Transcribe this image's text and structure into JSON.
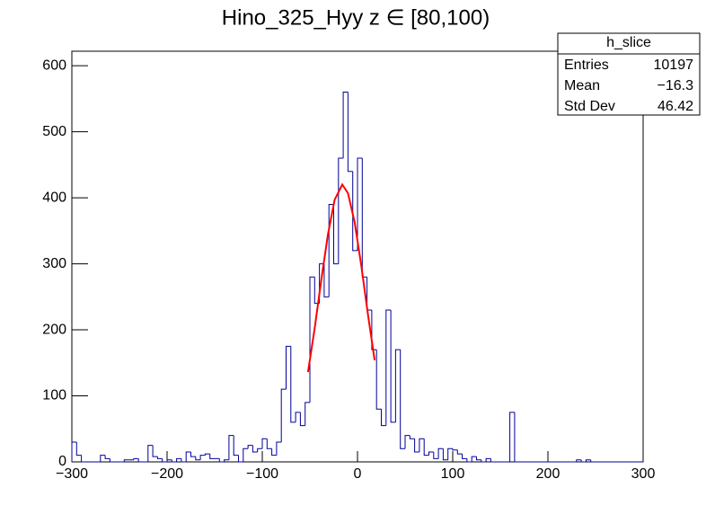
{
  "chart_data": {
    "type": "histogram",
    "title": "Hino_325_Hyy z  ∈ [80,100)",
    "bins": [
      -300,
      -295,
      -290,
      -285,
      -280,
      -275,
      -270,
      -265,
      -260,
      -255,
      -250,
      -245,
      -240,
      -235,
      -230,
      -225,
      -220,
      -215,
      -210,
      -205,
      -200,
      -195,
      -190,
      -185,
      -180,
      -175,
      -170,
      -165,
      -160,
      -155,
      -150,
      -145,
      -140,
      -135,
      -130,
      -125,
      -120,
      -115,
      -110,
      -105,
      -100,
      -95,
      -90,
      -85,
      -80,
      -75,
      -70,
      -65,
      -60,
      -55,
      -50,
      -45,
      -40,
      -35,
      -30,
      -25,
      -20,
      -15,
      -10,
      -5,
      0,
      5,
      10,
      15,
      20,
      25,
      30,
      35,
      40,
      45,
      50,
      55,
      60,
      65,
      70,
      75,
      80,
      85,
      90,
      95,
      100,
      105,
      110,
      115,
      120,
      125,
      130,
      135,
      140,
      145,
      150,
      155,
      160,
      165,
      170,
      175,
      180,
      185,
      190,
      195,
      200,
      205,
      210,
      215,
      220,
      225,
      230,
      235,
      240,
      245,
      250,
      255,
      260,
      265,
      270,
      275,
      280,
      285,
      290,
      295,
      300
    ],
    "values": [
      30,
      10,
      0,
      0,
      0,
      0,
      10,
      5,
      0,
      0,
      0,
      3,
      3,
      5,
      0,
      0,
      25,
      8,
      5,
      0,
      3,
      0,
      5,
      0,
      15,
      8,
      3,
      10,
      12,
      5,
      5,
      0,
      3,
      40,
      10,
      0,
      20,
      25,
      15,
      20,
      35,
      20,
      10,
      30,
      110,
      175,
      60,
      75,
      55,
      90,
      280,
      240,
      300,
      250,
      390,
      300,
      460,
      560,
      440,
      320,
      460,
      280,
      230,
      170,
      80,
      55,
      230,
      60,
      170,
      20,
      40,
      35,
      15,
      35,
      10,
      15,
      5,
      20,
      3,
      20,
      18,
      12,
      5,
      0,
      8,
      3,
      0,
      5,
      0,
      0,
      0,
      0,
      75,
      0,
      0,
      0,
      0,
      0,
      0,
      0,
      0,
      0,
      0,
      0,
      0,
      0,
      3,
      0,
      3,
      0,
      0,
      0,
      0,
      0,
      0,
      0,
      0,
      0,
      0,
      0
    ],
    "color": "#000099",
    "fit": {
      "color": "#ff0000",
      "x": [
        -52,
        -45,
        -38,
        -31,
        -24,
        -16,
        -10,
        -3,
        4,
        11,
        18
      ],
      "values": [
        136,
        202,
        276,
        345,
        397,
        420,
        407,
        363,
        297,
        223,
        154
      ]
    },
    "xlim": [
      -300,
      300
    ],
    "xticks": [
      {
        "value": -300,
        "label": "−300"
      },
      {
        "value": -200,
        "label": "−200"
      },
      {
        "value": -100,
        "label": "−100"
      },
      0,
      100,
      200,
      300
    ],
    "ylim": [
      0,
      622
    ],
    "yticks": [
      0,
      100,
      200,
      300,
      400,
      500,
      600
    ],
    "stats": {
      "title": "h_slice",
      "rows": [
        [
          "Entries",
          "10197"
        ],
        [
          "Mean",
          "−16.3"
        ],
        [
          "Std Dev",
          "46.42"
        ]
      ]
    }
  }
}
